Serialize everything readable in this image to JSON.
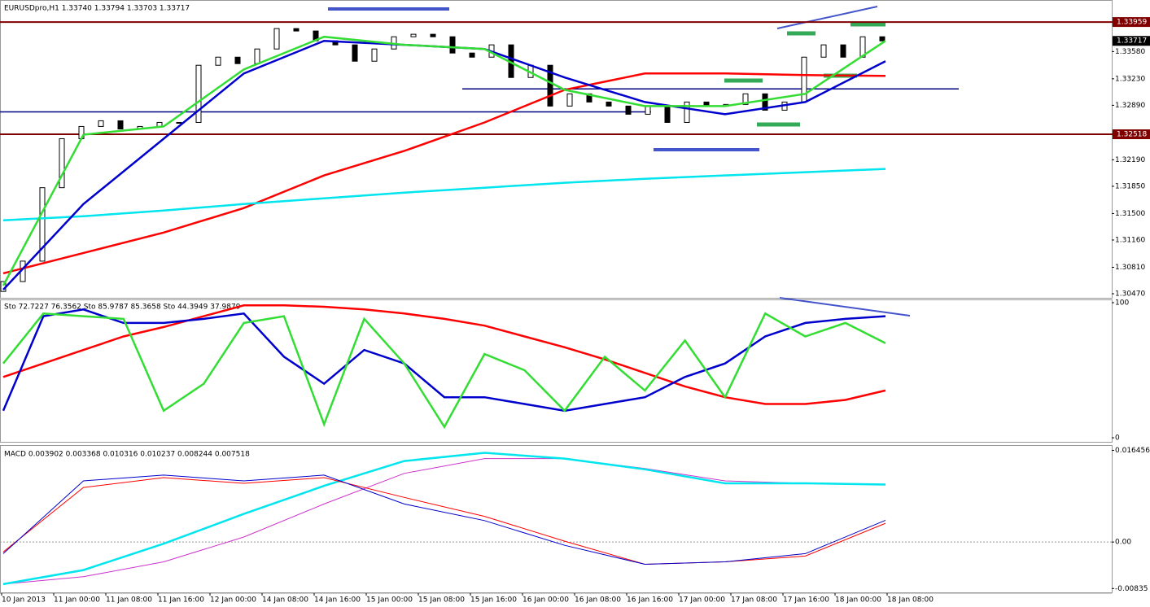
{
  "chart_data": [
    {
      "type": "candlestick",
      "title": "EURUSDpro,H1  1.33740 1.33794 1.33703 1.33717",
      "first_open": 1.305,
      "close": [
        1.30627,
        1.30889,
        1.31832,
        1.32461,
        1.32618,
        1.32691,
        1.32586,
        1.32618,
        1.3267,
        1.3267,
        1.33404,
        1.33508,
        1.33425,
        1.33613,
        1.33875,
        1.33844,
        1.33718,
        1.33666,
        1.33456,
        1.33613,
        1.3377,
        1.33802,
        1.3377,
        1.33561,
        1.33508,
        1.33666,
        1.33247,
        1.33404,
        1.3288,
        1.33037,
        1.32932,
        1.3288,
        1.32775,
        1.3288,
        1.3267,
        1.32932,
        1.3288,
        1.32901,
        1.33037,
        1.32827,
        1.32932,
        1.33508,
        1.33666,
        1.33508,
        1.3377,
        1.33717
      ],
      "series": [
        {
          "color": "#ff0000",
          "width": 2.5,
          "values": [
            1.30732,
            1.30994,
            1.31256,
            1.3157,
            1.31989,
            1.32304,
            1.3267,
            1.33089,
            1.33299,
            1.33299,
            1.33278,
            1.33267
          ]
        },
        {
          "color": "#00e5ee",
          "width": 2.5,
          "values": [
            1.31413,
            1.31465,
            1.31539,
            1.31622,
            1.31696,
            1.31769,
            1.31832,
            1.31895,
            1.31947,
            1.31989,
            1.32031,
            1.32073
          ]
        },
        {
          "color": "#0000cc",
          "width": 2.5,
          "values": [
            1.30522,
            1.31622,
            1.32461,
            1.33299,
            1.33718,
            1.33666,
            1.33613,
            1.33247,
            1.32932,
            1.32775,
            1.32932,
            1.33456
          ]
        },
        {
          "color": "#33dd33",
          "width": 2.5,
          "values": [
            1.30575,
            1.32513,
            1.32618,
            1.33351,
            1.3377,
            1.33666,
            1.33613,
            1.33089,
            1.3288,
            1.3288,
            1.33037,
            1.33718
          ]
        }
      ],
      "hlines": [
        {
          "value": 1.33959,
          "color": "#800000"
        },
        {
          "value": 1.32518,
          "color": "#800000"
        },
        {
          "value": 1.32806,
          "color": "#000080"
        },
        {
          "value": 1.331,
          "color": "#000080"
        }
      ],
      "price_labels": [
        {
          "value": 1.33959,
          "label": "1.33959",
          "color": "#800000"
        },
        {
          "value": 1.33717,
          "label": "1.33717",
          "color": "#000000"
        },
        {
          "value": 1.32518,
          "label": "1.32518",
          "color": "#800000"
        }
      ],
      "ylim": [
        1.30418,
        1.34242
      ],
      "yticks": [
        {
          "value": 1.3358,
          "label": "1.33580"
        },
        {
          "value": 1.3323,
          "label": "1.33230"
        },
        {
          "value": 1.3289,
          "label": "1.32890"
        },
        {
          "value": 1.3219,
          "label": "1.32190"
        },
        {
          "value": 1.3185,
          "label": "1.31850"
        },
        {
          "value": 1.315,
          "label": "1.31500"
        },
        {
          "value": 1.3116,
          "label": "1.31160"
        },
        {
          "value": 1.3081,
          "label": "1.30810"
        },
        {
          "value": 1.3047,
          "label": "1.30470"
        }
      ],
      "x_labels": [
        "10 Jan 2013",
        "11 Jan 00:00",
        "11 Jan 08:00",
        "11 Jan 16:00",
        "12 Jan 00:00",
        "14 Jan 08:00",
        "14 Jan 16:00",
        "15 Jan 00:00",
        "15 Jan 08:00",
        "15 Jan 16:00",
        "16 Jan 00:00",
        "16 Jan 08:00",
        "16 Jan 16:00",
        "17 Jan 00:00",
        "17 Jan 08:00",
        "17 Jan 16:00",
        "18 Jan 00:00",
        "18 Jan 08:00"
      ]
    },
    {
      "type": "line",
      "title": "Sto 72.7227 76.3562  Sto 85.9787 85.3658  Sto 44.3949 37.9879",
      "series": [
        {
          "color": "#ff0000",
          "width": 2.5,
          "values": [
            45,
            55,
            65,
            75,
            82,
            90,
            98,
            98,
            97,
            95,
            92,
            88,
            83,
            75,
            67,
            58,
            48,
            38,
            30,
            25,
            25,
            28,
            35
          ]
        },
        {
          "color": "#0000cc",
          "width": 2.5,
          "values": [
            20,
            90,
            95,
            85,
            85,
            88,
            92,
            60,
            40,
            65,
            55,
            30,
            30,
            25,
            20,
            25,
            30,
            45,
            55,
            75,
            85,
            88,
            90
          ]
        },
        {
          "color": "#33dd33",
          "width": 2.5,
          "values": [
            55,
            92,
            90,
            88,
            20,
            40,
            85,
            90,
            10,
            88,
            55,
            8,
            62,
            50,
            20,
            60,
            35,
            72,
            30,
            92,
            75,
            85,
            70
          ]
        }
      ],
      "ylim": [
        -3,
        102.4
      ],
      "yticks": [
        100,
        0
      ]
    },
    {
      "type": "line",
      "title": "MACD 0.003902 0.003368 0.010316 0.010237 0.008244 0.007518",
      "series": [
        {
          "color": "#cc33cc",
          "width": 1,
          "values": [
            -0.00756,
            -0.00623,
            -0.00356,
            0.00089,
            0.00682,
            0.01231,
            0.01497,
            0.01497,
            0.0132,
            0.01097,
            0.01053,
            0.010237
          ]
        },
        {
          "color": "#00e5ee",
          "width": 2.5,
          "values": [
            -0.00756,
            -0.00504,
            -0.0003,
            0.00504,
            0.01008,
            0.01453,
            0.01601,
            0.01497,
            0.01305,
            0.01053,
            0.01053,
            0.010316
          ]
        },
        {
          "color": "#ff0000",
          "width": 1,
          "values": [
            -0.00178,
            0.00979,
            0.01156,
            0.01053,
            0.01156,
            0.00801,
            0.0046,
            0.00015,
            -0.004,
            -0.00356,
            -0.00252,
            0.003368
          ]
        },
        {
          "color": "#0000cc",
          "width": 1,
          "values": [
            -0.00208,
            0.01097,
            0.01201,
            0.01097,
            0.01201,
            0.00682,
            0.00385,
            -0.00059,
            -0.004,
            -0.00356,
            -0.00208,
            0.003902
          ]
        }
      ],
      "ylim": [
        -0.00904,
        0.0174
      ],
      "yticks": [
        {
          "value": 0.016456,
          "label": "0.016456"
        },
        {
          "value": 0,
          "label": "0.00"
        },
        {
          "value": -0.00835,
          "label": "-0.00835"
        }
      ],
      "zero_line": 0
    }
  ]
}
